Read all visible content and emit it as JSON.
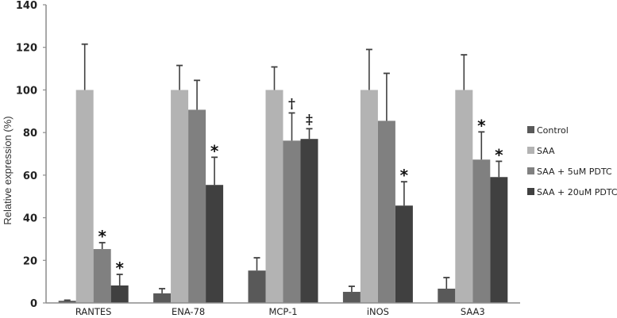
{
  "chart_data": {
    "type": "bar",
    "title": "",
    "xlabel": "",
    "ylabel": "Relative expression (%)",
    "ylim": [
      0,
      140
    ],
    "yticks": [
      0,
      20,
      40,
      60,
      80,
      100,
      120,
      140
    ],
    "grid": false,
    "legend_position": "right",
    "categories": [
      "RANTES",
      "ENA-78",
      "MCP-1",
      "iNOS",
      "SAA3"
    ],
    "series": [
      {
        "name": "Control",
        "color": "#595959",
        "values": [
          1.0,
          4.5,
          15.2,
          5.2,
          6.7
        ],
        "error_upper": [
          1.3,
          6.7,
          21.2,
          7.8,
          11.9
        ],
        "annotations": [
          "",
          "",
          "",
          "",
          ""
        ]
      },
      {
        "name": "SAA",
        "color": "#b3b3b3",
        "values": [
          100,
          100,
          100,
          100,
          100
        ],
        "error_upper": [
          121.5,
          111.5,
          110.8,
          119.0,
          116.5
        ],
        "annotations": [
          "",
          "",
          "",
          "",
          ""
        ]
      },
      {
        "name": "SAA + 5uM PDTC",
        "color": "#808080",
        "values": [
          25.3,
          90.7,
          76.2,
          85.5,
          67.3
        ],
        "error_upper": [
          28.3,
          104.5,
          89.2,
          107.8,
          80.3
        ],
        "annotations": [
          "*",
          "",
          "†",
          "",
          "*"
        ]
      },
      {
        "name": "SAA + 20uM PDTC",
        "color": "#404040",
        "values": [
          8.2,
          55.4,
          77.0,
          45.7,
          59.1
        ],
        "error_upper": [
          13.4,
          68.4,
          81.8,
          56.9,
          66.5
        ],
        "annotations": [
          "*",
          "*",
          "‡",
          "*",
          "*"
        ]
      }
    ]
  }
}
